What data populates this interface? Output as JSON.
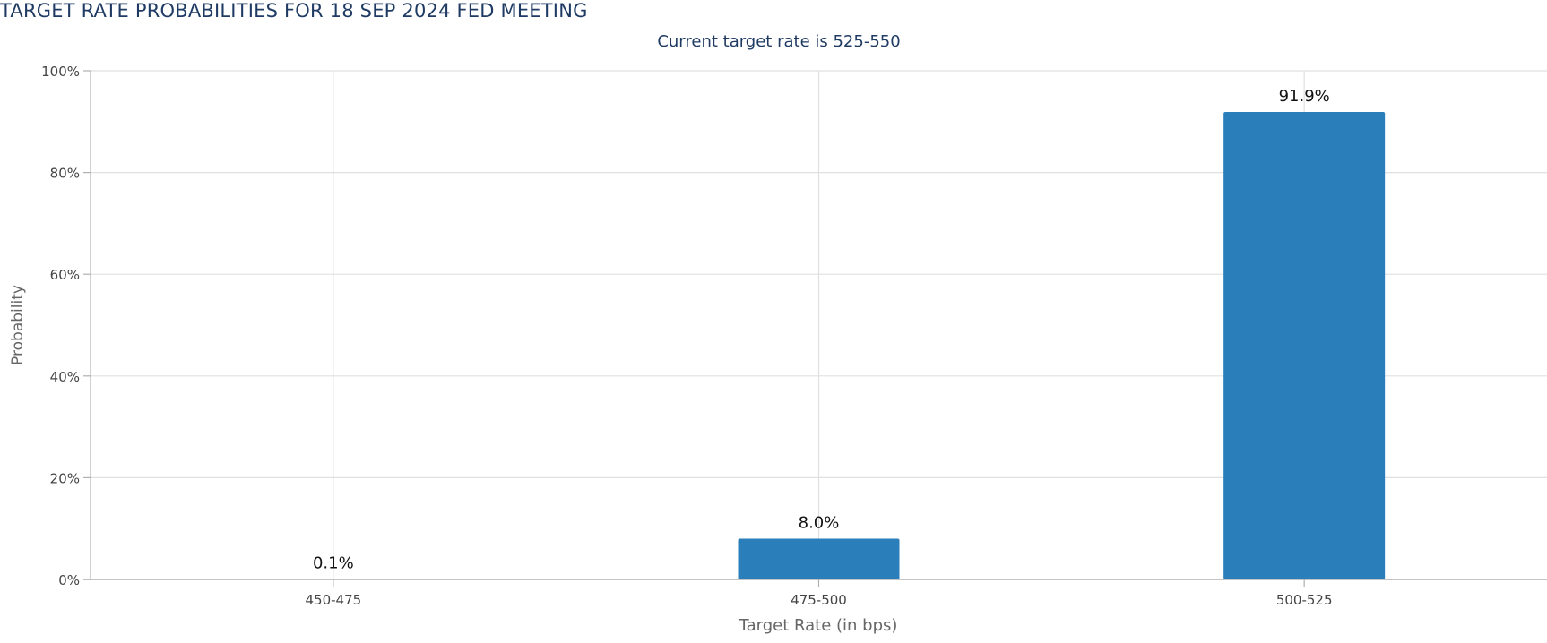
{
  "chart_data": {
    "type": "bar",
    "title": "TARGET RATE PROBABILITIES FOR 18 SEP 2024 FED MEETING",
    "subtitle": "Current target rate is 525-550",
    "xlabel": "Target Rate (in bps)",
    "ylabel": "Probability",
    "categories": [
      "450-475",
      "475-500",
      "500-525"
    ],
    "values": [
      0.1,
      8.0,
      91.9
    ],
    "data_labels": [
      "0.1%",
      "8.0%",
      "91.9%"
    ],
    "ylim": [
      0,
      100
    ],
    "yticks": [
      0,
      20,
      40,
      60,
      80,
      100
    ],
    "ytick_labels": [
      "0%",
      "20%",
      "40%",
      "60%",
      "80%",
      "100%"
    ],
    "grid": true,
    "legend": "none",
    "colors": {
      "bar": "#2a7fba",
      "title": "#1f3b64",
      "subtitle": "#1f3b64",
      "grid": "#e0e0e0",
      "axis": "#b0b0b0",
      "tick_label": "#444444",
      "axis_title": "#666666",
      "data_label": "#111111"
    }
  }
}
